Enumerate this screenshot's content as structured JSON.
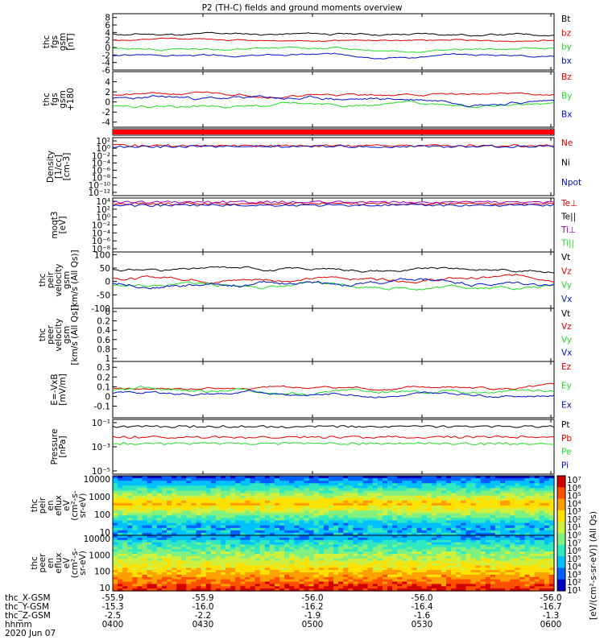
{
  "title": "P2 (TH-C) fields and ground moments overview",
  "colors": {
    "black": "#000000",
    "red": "#e00000",
    "green": "#22dd22",
    "blue": "#0010c8",
    "purple": "#9a00b0"
  },
  "chart_data": [
    {
      "type": "line",
      "name": "fgs",
      "ylabel": [
        "thc",
        "fgs",
        "gsm",
        "[nT]"
      ],
      "yticks": [
        -6,
        -4,
        -2,
        0,
        2,
        4,
        6,
        8
      ],
      "ylim": [
        -6,
        9
      ],
      "series": [
        {
          "name": "Bt",
          "color": "black",
          "base": 3.5,
          "amp": 1.0,
          "seed": 11
        },
        {
          "name": "bz",
          "color": "red",
          "base": 2.0,
          "amp": 0.7,
          "seed": 12
        },
        {
          "name": "by",
          "color": "green",
          "base": -0.3,
          "amp": 1.0,
          "seed": 13
        },
        {
          "name": "bx",
          "color": "blue",
          "base": -2.2,
          "amp": 0.9,
          "seed": 14
        }
      ]
    },
    {
      "type": "line",
      "name": "fgs-gse",
      "ylabel": [
        "thc",
        "fgs",
        "gsm",
        "+180"
      ],
      "yticks": [
        -4,
        -2,
        0,
        2,
        4
      ],
      "ylim": [
        -5,
        6
      ],
      "series": [
        {
          "name": "Bz",
          "color": "red",
          "base": 1.5,
          "amp": 0.8,
          "seed": 21
        },
        {
          "name": "By",
          "color": "green",
          "base": -0.5,
          "amp": 1.0,
          "seed": 22
        },
        {
          "name": "Bx",
          "color": "blue",
          "base": 0.5,
          "amp": 1.2,
          "seed": 23
        }
      ]
    },
    {
      "type": "line",
      "name": "flag",
      "ylabel": [],
      "yticks": [],
      "series": []
    },
    {
      "type": "line",
      "name": "density",
      "ylabel": [
        "Density",
        "[1/cc]",
        "[cm-3]"
      ],
      "yticks": [
        "10²",
        "10⁰",
        "10⁻²",
        "10⁻⁴",
        "10⁻⁶",
        "10⁻⁸",
        "10⁻¹⁰",
        "10⁻¹²"
      ],
      "series": [
        {
          "name": "Ne",
          "color": "red"
        },
        {
          "name": "Ni",
          "color": "black"
        },
        {
          "name": "Npot",
          "color": "blue"
        }
      ]
    },
    {
      "type": "line",
      "name": "temp",
      "ylabel": [
        "moqt3",
        "[eV]"
      ],
      "yticks": [
        "10⁴",
        "10²",
        "10⁰",
        "10⁻²",
        "10⁻⁴",
        "10⁻⁶",
        "10⁻⁸"
      ],
      "series": [
        {
          "name": "Te⊥",
          "color": "red"
        },
        {
          "name": "Te||",
          "color": "black"
        },
        {
          "name": "Ti⊥",
          "color": "purple"
        },
        {
          "name": "Ti||",
          "color": "green"
        }
      ]
    },
    {
      "type": "line",
      "name": "peir-velocity",
      "ylabel": [
        "thc",
        "peir",
        "velocity",
        "gsm",
        "[km/s (All Qs)]"
      ],
      "yticks": [
        -100,
        -50,
        0,
        50,
        100
      ],
      "ylim": [
        -100,
        110
      ],
      "series": [
        {
          "name": "Vt",
          "color": "black",
          "base": 45,
          "amp": 18,
          "seed": 31
        },
        {
          "name": "Vz",
          "color": "red",
          "base": 15,
          "amp": 22,
          "seed": 32
        },
        {
          "name": "Vy",
          "color": "green",
          "base": -15,
          "amp": 22,
          "seed": 33
        },
        {
          "name": "Vx",
          "color": "blue",
          "base": -5,
          "amp": 28,
          "seed": 34
        }
      ]
    },
    {
      "type": "line",
      "name": "peer-velocity",
      "ylabel": [
        "thc",
        "peer",
        "velocity",
        "gsm",
        "[km/s (All Qs)]"
      ],
      "yticks": [
        0.0,
        0.2,
        0.4,
        0.6,
        0.8,
        1.0
      ],
      "series": [
        {
          "name": "Vt",
          "color": "black"
        },
        {
          "name": "Vz",
          "color": "red"
        },
        {
          "name": "Vy",
          "color": "green"
        },
        {
          "name": "Vx",
          "color": "blue"
        }
      ]
    },
    {
      "type": "line",
      "name": "efield",
      "ylabel": [
        "E=-VxB",
        "[mV/m]"
      ],
      "yticks": [
        -0.1,
        0.0,
        0.1,
        0.2,
        0.3
      ],
      "ylim": [
        -0.22,
        0.36
      ],
      "series": [
        {
          "name": "Ez",
          "color": "red",
          "base": 0.08,
          "amp": 0.05,
          "seed": 41
        },
        {
          "name": "Ey",
          "color": "green",
          "base": 0.05,
          "amp": 0.07,
          "seed": 42
        },
        {
          "name": "Ex",
          "color": "blue",
          "base": 0.03,
          "amp": 0.05,
          "seed": 43
        }
      ]
    },
    {
      "type": "line",
      "name": "pressure",
      "ylabel": [
        "Pressure",
        "[nPa]"
      ],
      "yticks": [
        "10⁻¹",
        "10⁻³",
        "10⁻⁵"
      ],
      "series": [
        {
          "name": "Pt",
          "color": "black"
        },
        {
          "name": "Pb",
          "color": "red"
        },
        {
          "name": "Pe",
          "color": "green"
        },
        {
          "name": "Pi",
          "color": "blue"
        }
      ]
    },
    {
      "type": "heatmap",
      "name": "peir-eflux",
      "ylabel": [
        "thc",
        "peir",
        "en",
        "eflux",
        "eV",
        "(cm²-s-",
        "sr-eV)"
      ],
      "yticks": [
        10000,
        1000,
        100,
        10
      ]
    },
    {
      "type": "heatmap",
      "name": "peer-eflux",
      "ylabel": [
        "thc",
        "peer",
        "en",
        "eflux",
        "eV",
        "(cm²-s-",
        "sr-eV)"
      ],
      "yticks": [
        10000,
        1000,
        100,
        10
      ]
    }
  ],
  "colorbar": {
    "label": "[eV/(cm²-s-sr-eV)] (All Qs)",
    "ticks": [
      "10⁷",
      "10⁶",
      "10⁵",
      "10⁴",
      "10³",
      "10²",
      "10¹",
      "10⁰",
      "10⁷",
      "10⁶",
      "10⁵",
      "10⁴",
      "10³",
      "10²",
      "10¹"
    ]
  },
  "x_axis": {
    "rows": [
      {
        "label": "thc_X-GSM",
        "values": [
          "-55.9",
          "-55.9",
          "-56.0",
          "-56.0",
          "-56.0"
        ]
      },
      {
        "label": "thc_Y-GSM",
        "values": [
          "-15.3",
          "-16.0",
          "-16.2",
          "-16.4",
          "-16.7"
        ]
      },
      {
        "label": "thc_Z-GSM",
        "values": [
          "-2.5",
          "-2.2",
          "-1.9",
          "-1.6",
          "-1.3"
        ]
      },
      {
        "label": "hhmm",
        "values": [
          "0400",
          "0430",
          "0500",
          "0530",
          "0600"
        ]
      }
    ],
    "date": "2020 Jun 07"
  }
}
